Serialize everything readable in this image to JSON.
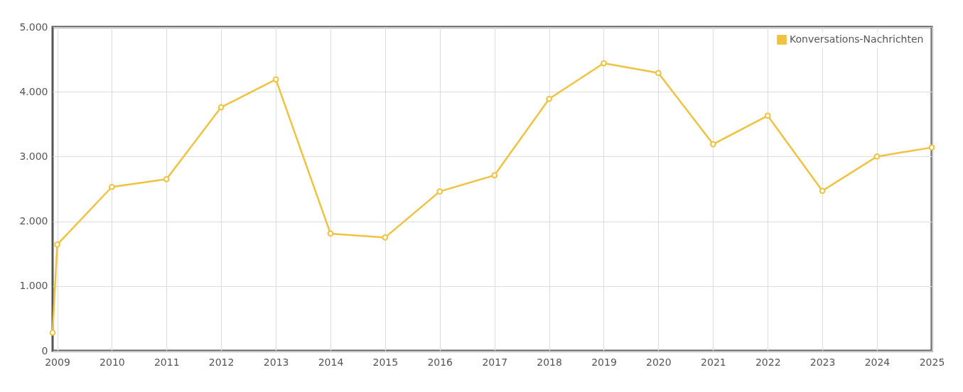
{
  "chart_data": {
    "type": "line",
    "x": [
      "2008-12",
      "2009",
      "2010",
      "2011",
      "2012",
      "2013",
      "2014",
      "2015",
      "2016",
      "2017",
      "2018",
      "2019",
      "2020",
      "2021",
      "2022",
      "2023",
      "2024",
      "2025"
    ],
    "series": [
      {
        "name": "Konversations-Nachrichten",
        "color": "#efc23f",
        "values": [
          280,
          1640,
          2530,
          2650,
          3760,
          4190,
          1810,
          1750,
          2460,
          2710,
          3890,
          4440,
          4290,
          3190,
          3630,
          2470,
          3000,
          3140
        ]
      }
    ],
    "xlim": [
      "2008-12",
      "2025"
    ],
    "xticks": [
      "2009",
      "2010",
      "2011",
      "2012",
      "2013",
      "2014",
      "2015",
      "2016",
      "2017",
      "2018",
      "2019",
      "2020",
      "2021",
      "2022",
      "2023",
      "2024",
      "2025"
    ],
    "ylim": [
      0,
      5000
    ],
    "yticks": [
      0,
      {
        "value": 1000,
        "label": "1.000"
      },
      {
        "value": 2000,
        "label": "2.000"
      },
      {
        "value": 3000,
        "label": "3.000"
      },
      {
        "value": 4000,
        "label": "4.000"
      },
      {
        "value": 5000,
        "label": "5.000"
      }
    ],
    "grid": true,
    "legend": "top right",
    "marker": "circle"
  }
}
